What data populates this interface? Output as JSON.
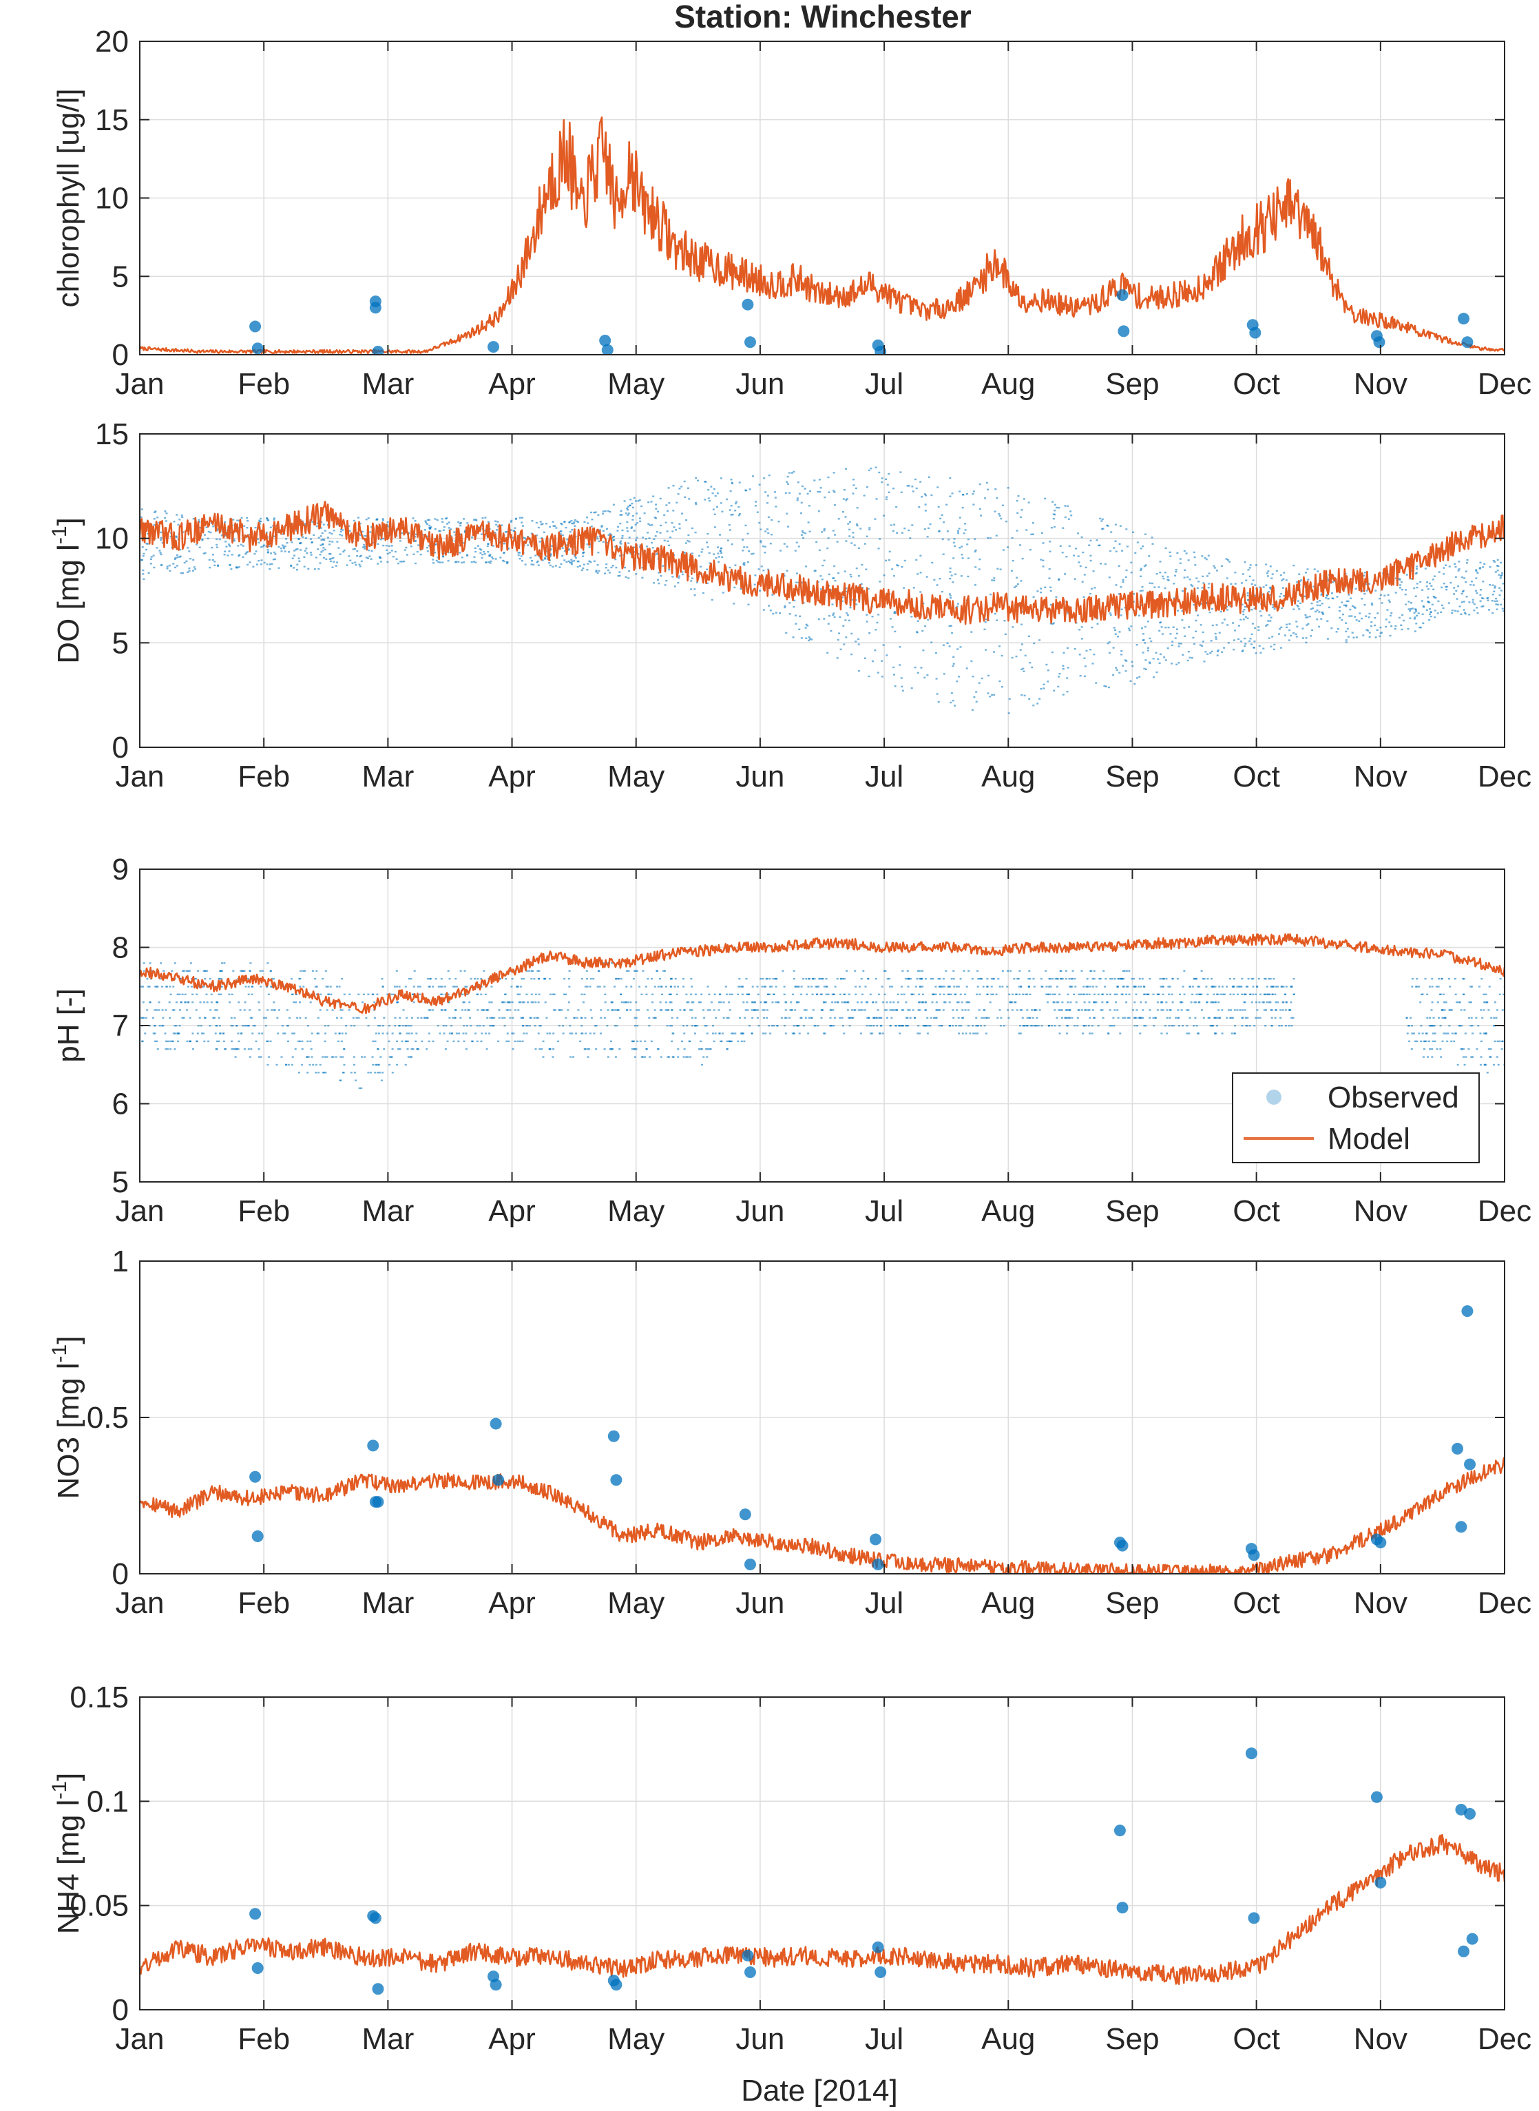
{
  "title": "Station: Winchester",
  "xlabel": "Date [2014]",
  "month_labels": [
    "Jan",
    "Feb",
    "Mar",
    "Apr",
    "May",
    "Jun",
    "Jul",
    "Aug",
    "Sep",
    "Oct",
    "Nov",
    "Dec"
  ],
  "legend": {
    "observed": "Observed",
    "model": "Model"
  },
  "colors": {
    "model": "#e25b22",
    "observed": "#0072bd",
    "grid": "#dedede",
    "axes": "#262626"
  },
  "chart_data": [
    {
      "type": "line",
      "panel": "chlorophyll",
      "ylabel": "chlorophyll [ug/l]",
      "ylim": [
        0,
        20
      ],
      "yticks": [
        0,
        5,
        10,
        15,
        20
      ],
      "ytick_labels": [
        "0",
        "5",
        "10",
        "15",
        "20"
      ],
      "xlim_months": [
        0,
        11
      ],
      "series": [
        {
          "name": "Model",
          "render": "line",
          "x_months": [
            0,
            0.5,
            1,
            1.5,
            2,
            2.3,
            2.5,
            2.7,
            2.9,
            3.0,
            3.15,
            3.3,
            3.45,
            3.55,
            3.65,
            3.75,
            3.85,
            3.95,
            4.05,
            4.15,
            4.3,
            4.5,
            4.7,
            4.9,
            5.1,
            5.3,
            5.5,
            5.7,
            5.9,
            6.1,
            6.3,
            6.5,
            6.7,
            6.9,
            7.1,
            7.3,
            7.5,
            7.7,
            7.9,
            8.1,
            8.3,
            8.5,
            8.7,
            8.9,
            9.1,
            9.3,
            9.5,
            9.6,
            9.7,
            9.8,
            10.0,
            10.2,
            10.4,
            10.6,
            10.8,
            11.0
          ],
          "y": [
            0.4,
            0.2,
            0.2,
            0.2,
            0.2,
            0.2,
            0.8,
            1.5,
            2.5,
            4.0,
            7.0,
            11.0,
            13.0,
            9.0,
            11.5,
            13.0,
            9.0,
            12.5,
            9.5,
            9.0,
            7.0,
            6.0,
            5.5,
            5.0,
            4.5,
            4.8,
            3.8,
            3.8,
            4.5,
            3.5,
            2.8,
            3.0,
            4.0,
            6.0,
            3.5,
            3.5,
            3.0,
            3.2,
            4.5,
            3.5,
            3.8,
            4.0,
            5.5,
            7.5,
            8.5,
            9.5,
            7.0,
            5.0,
            3.5,
            2.5,
            2.2,
            1.8,
            1.2,
            0.8,
            0.4,
            0.3
          ]
        },
        {
          "name": "Observed",
          "render": "points",
          "x_months": [
            0.93,
            0.95,
            1.9,
            1.9,
            1.92,
            2.85,
            3.75,
            3.77,
            4.9,
            4.92,
            5.95,
            5.97,
            7.92,
            7.93,
            8.97,
            8.99,
            9.97,
            9.99,
            10.67,
            10.7
          ],
          "y": [
            1.8,
            0.4,
            3.4,
            3.0,
            0.2,
            0.5,
            0.9,
            0.3,
            3.2,
            0.8,
            0.6,
            0.2,
            3.8,
            1.5,
            1.9,
            1.4,
            1.2,
            0.8,
            2.3,
            0.8
          ]
        }
      ]
    },
    {
      "type": "line",
      "panel": "DO",
      "ylabel": "DO [mg l",
      "ylabel_exponent": "-1",
      "ylabel_close": "]",
      "ylim": [
        0,
        15
      ],
      "yticks": [
        0,
        5,
        10,
        15
      ],
      "ytick_labels": [
        "0",
        "5",
        "10",
        "15"
      ],
      "xlim_months": [
        0,
        11
      ],
      "series": [
        {
          "name": "Model",
          "render": "line",
          "x_months": [
            0,
            0.3,
            0.6,
            0.9,
            1.2,
            1.5,
            1.8,
            2.1,
            2.4,
            2.7,
            3.0,
            3.3,
            3.6,
            3.9,
            4.2,
            4.5,
            4.8,
            5.1,
            5.4,
            5.7,
            6.0,
            6.3,
            6.6,
            6.9,
            7.2,
            7.5,
            7.8,
            8.1,
            8.4,
            8.7,
            9.0,
            9.3,
            9.6,
            9.9,
            10.2,
            10.5,
            10.8,
            11.0
          ],
          "y": [
            10.5,
            10.0,
            10.8,
            10.0,
            10.5,
            11.2,
            10.0,
            10.5,
            9.5,
            10.2,
            10.0,
            9.5,
            10.0,
            9.2,
            9.0,
            8.5,
            8.0,
            7.8,
            7.5,
            7.2,
            7.0,
            6.8,
            6.5,
            6.8,
            6.5,
            6.5,
            6.8,
            6.8,
            7.0,
            7.2,
            7.0,
            7.3,
            8.0,
            8.0,
            8.5,
            9.5,
            10.2,
            10.5
          ]
        },
        {
          "name": "Observed",
          "render": "band",
          "x_months": [
            0,
            0.5,
            1.0,
            1.5,
            2.0,
            2.5,
            3.0,
            3.5,
            4.0,
            4.5,
            5.0,
            5.5,
            6.0,
            6.5,
            7.0,
            7.5,
            8.0,
            8.5,
            9.0,
            9.5,
            10.0,
            10.5,
            11.0
          ],
          "y_low": [
            8.0,
            8.5,
            8.5,
            8.5,
            8.8,
            8.8,
            8.8,
            8.5,
            8.0,
            7.0,
            6.0,
            4.5,
            3.0,
            2.0,
            1.5,
            2.5,
            3.0,
            4.0,
            4.5,
            5.0,
            5.0,
            6.0,
            6.5
          ],
          "y_high": [
            11.5,
            11.0,
            11.0,
            11.0,
            11.0,
            11.0,
            11.0,
            11.0,
            12.0,
            13.0,
            13.0,
            13.5,
            13.5,
            13.0,
            12.5,
            11.5,
            10.5,
            9.5,
            9.0,
            8.5,
            8.5,
            9.0,
            9.0
          ]
        }
      ]
    },
    {
      "type": "line",
      "panel": "pH",
      "ylabel": "pH [-]",
      "ylim": [
        5,
        9
      ],
      "yticks": [
        5,
        6,
        7,
        8,
        9
      ],
      "ytick_labels": [
        "5",
        "6",
        "7",
        "8",
        "9"
      ],
      "xlim_months": [
        0,
        11
      ],
      "legend_location": "bottom-right",
      "series": [
        {
          "name": "Model",
          "render": "line",
          "x_months": [
            0,
            0.3,
            0.6,
            0.9,
            1.2,
            1.5,
            1.8,
            2.1,
            2.4,
            2.7,
            3.0,
            3.3,
            3.6,
            3.9,
            4.2,
            4.5,
            4.8,
            5.1,
            5.4,
            5.7,
            6.0,
            6.3,
            6.6,
            6.9,
            7.2,
            7.5,
            7.8,
            8.1,
            8.4,
            8.7,
            9.0,
            9.3,
            9.6,
            9.9,
            10.2,
            10.5,
            10.8,
            11.0
          ],
          "y": [
            7.7,
            7.6,
            7.5,
            7.6,
            7.5,
            7.3,
            7.2,
            7.4,
            7.3,
            7.5,
            7.7,
            7.9,
            7.8,
            7.8,
            7.9,
            7.95,
            8.0,
            8.0,
            8.05,
            8.05,
            8.0,
            8.0,
            8.0,
            7.95,
            8.0,
            8.0,
            8.0,
            8.05,
            8.05,
            8.1,
            8.1,
            8.1,
            8.05,
            8.0,
            7.95,
            7.9,
            7.8,
            7.7
          ]
        },
        {
          "name": "Observed",
          "render": "band",
          "x_months": [
            0,
            0.4,
            0.8,
            1.2,
            1.5,
            1.8,
            2.2,
            2.6,
            3.0,
            3.4,
            3.8,
            4.2,
            4.4,
            4.6,
            4.8,
            5.2,
            5.6,
            6.0,
            6.4,
            6.8,
            7.2,
            7.6,
            8.0,
            8.4,
            8.8,
            9.2,
            9.3,
            10.2,
            10.6,
            11.0
          ],
          "y_low": [
            6.7,
            6.7,
            6.6,
            6.4,
            6.3,
            6.1,
            6.6,
            6.7,
            6.7,
            6.5,
            6.6,
            6.6,
            6.5,
            6.5,
            6.8,
            6.9,
            6.9,
            6.9,
            6.9,
            6.9,
            6.9,
            6.9,
            6.9,
            6.9,
            6.9,
            7.0,
            7.0,
            6.6,
            6.5,
            6.4
          ],
          "y_high": [
            7.8,
            7.8,
            7.8,
            7.8,
            7.7,
            7.6,
            7.7,
            7.7,
            7.7,
            7.8,
            7.8,
            7.7,
            7.6,
            7.5,
            7.6,
            7.7,
            7.7,
            7.7,
            7.7,
            7.7,
            7.7,
            7.7,
            7.7,
            7.7,
            7.6,
            7.6,
            7.6,
            7.6,
            7.6,
            7.6
          ],
          "gaps_months": [
            [
              9.3,
              10.2
            ]
          ]
        }
      ]
    },
    {
      "type": "line",
      "panel": "NO3",
      "ylabel": "NO3 [mg l",
      "ylabel_exponent": "-1",
      "ylabel_close": "]",
      "ylim": [
        0,
        1
      ],
      "yticks": [
        0,
        0.5,
        1
      ],
      "ytick_labels": [
        "0",
        "0.5",
        "1"
      ],
      "xlim_months": [
        0,
        11
      ],
      "series": [
        {
          "name": "Model",
          "render": "line",
          "x_months": [
            0,
            0.3,
            0.6,
            0.9,
            1.2,
            1.5,
            1.8,
            2.1,
            2.4,
            2.7,
            3.0,
            3.3,
            3.6,
            3.9,
            4.2,
            4.5,
            4.8,
            5.1,
            5.4,
            5.7,
            6.0,
            6.3,
            6.6,
            6.9,
            7.2,
            7.5,
            7.8,
            8.1,
            8.4,
            8.7,
            9.0,
            9.3,
            9.6,
            9.9,
            10.2,
            10.5,
            10.8,
            11.0
          ],
          "y": [
            0.24,
            0.2,
            0.26,
            0.24,
            0.26,
            0.25,
            0.3,
            0.28,
            0.3,
            0.29,
            0.3,
            0.26,
            0.2,
            0.12,
            0.14,
            0.1,
            0.12,
            0.1,
            0.09,
            0.06,
            0.04,
            0.03,
            0.025,
            0.02,
            0.015,
            0.01,
            0.01,
            0.005,
            0.005,
            0.005,
            0.01,
            0.04,
            0.06,
            0.12,
            0.18,
            0.26,
            0.32,
            0.35
          ]
        },
        {
          "name": "Observed",
          "render": "points",
          "x_months": [
            0.93,
            0.95,
            1.88,
            1.9,
            1.92,
            2.87,
            2.89,
            3.82,
            3.84,
            4.88,
            4.92,
            5.93,
            5.95,
            7.9,
            7.92,
            8.96,
            8.98,
            9.97,
            10.0,
            10.62,
            10.65,
            10.7,
            10.72
          ],
          "y": [
            0.31,
            0.12,
            0.41,
            0.23,
            0.23,
            0.48,
            0.3,
            0.44,
            0.3,
            0.19,
            0.03,
            0.11,
            0.03,
            0.1,
            0.09,
            0.08,
            0.06,
            0.11,
            0.1,
            0.4,
            0.15,
            0.84,
            0.35
          ]
        }
      ]
    },
    {
      "type": "line",
      "panel": "NH4",
      "ylabel": "NH4 [mg l",
      "ylabel_exponent": "-1",
      "ylabel_close": "]",
      "ylim": [
        0,
        0.15
      ],
      "yticks": [
        0,
        0.05,
        0.1,
        0.15
      ],
      "ytick_labels": [
        "0",
        "0.05",
        "0.1",
        "0.15"
      ],
      "xlim_months": [
        0,
        11
      ],
      "series": [
        {
          "name": "Model",
          "render": "line",
          "x_months": [
            0,
            0.3,
            0.6,
            0.9,
            1.2,
            1.5,
            1.8,
            2.1,
            2.4,
            2.7,
            3.0,
            3.3,
            3.6,
            3.9,
            4.2,
            4.5,
            4.8,
            5.1,
            5.4,
            5.7,
            6.0,
            6.3,
            6.6,
            6.9,
            7.2,
            7.5,
            7.8,
            8.1,
            8.4,
            8.7,
            9.0,
            9.3,
            9.6,
            9.9,
            10.2,
            10.5,
            10.8,
            11.0
          ],
          "y": [
            0.02,
            0.03,
            0.025,
            0.032,
            0.028,
            0.03,
            0.025,
            0.025,
            0.022,
            0.028,
            0.025,
            0.026,
            0.022,
            0.02,
            0.024,
            0.025,
            0.026,
            0.025,
            0.026,
            0.024,
            0.026,
            0.025,
            0.022,
            0.022,
            0.02,
            0.022,
            0.02,
            0.018,
            0.016,
            0.018,
            0.02,
            0.035,
            0.05,
            0.06,
            0.075,
            0.08,
            0.07,
            0.065
          ]
        },
        {
          "name": "Observed",
          "render": "points",
          "x_months": [
            0.93,
            0.95,
            1.88,
            1.9,
            1.92,
            2.85,
            2.87,
            3.82,
            3.84,
            4.9,
            4.92,
            5.95,
            5.97,
            7.9,
            7.92,
            8.96,
            8.98,
            9.97,
            10.0,
            10.65,
            10.67,
            10.72,
            10.74
          ],
          "y": [
            0.046,
            0.02,
            0.045,
            0.044,
            0.01,
            0.016,
            0.012,
            0.014,
            0.012,
            0.026,
            0.018,
            0.03,
            0.018,
            0.086,
            0.049,
            0.123,
            0.044,
            0.102,
            0.061,
            0.096,
            0.028,
            0.094,
            0.034
          ]
        }
      ]
    }
  ]
}
